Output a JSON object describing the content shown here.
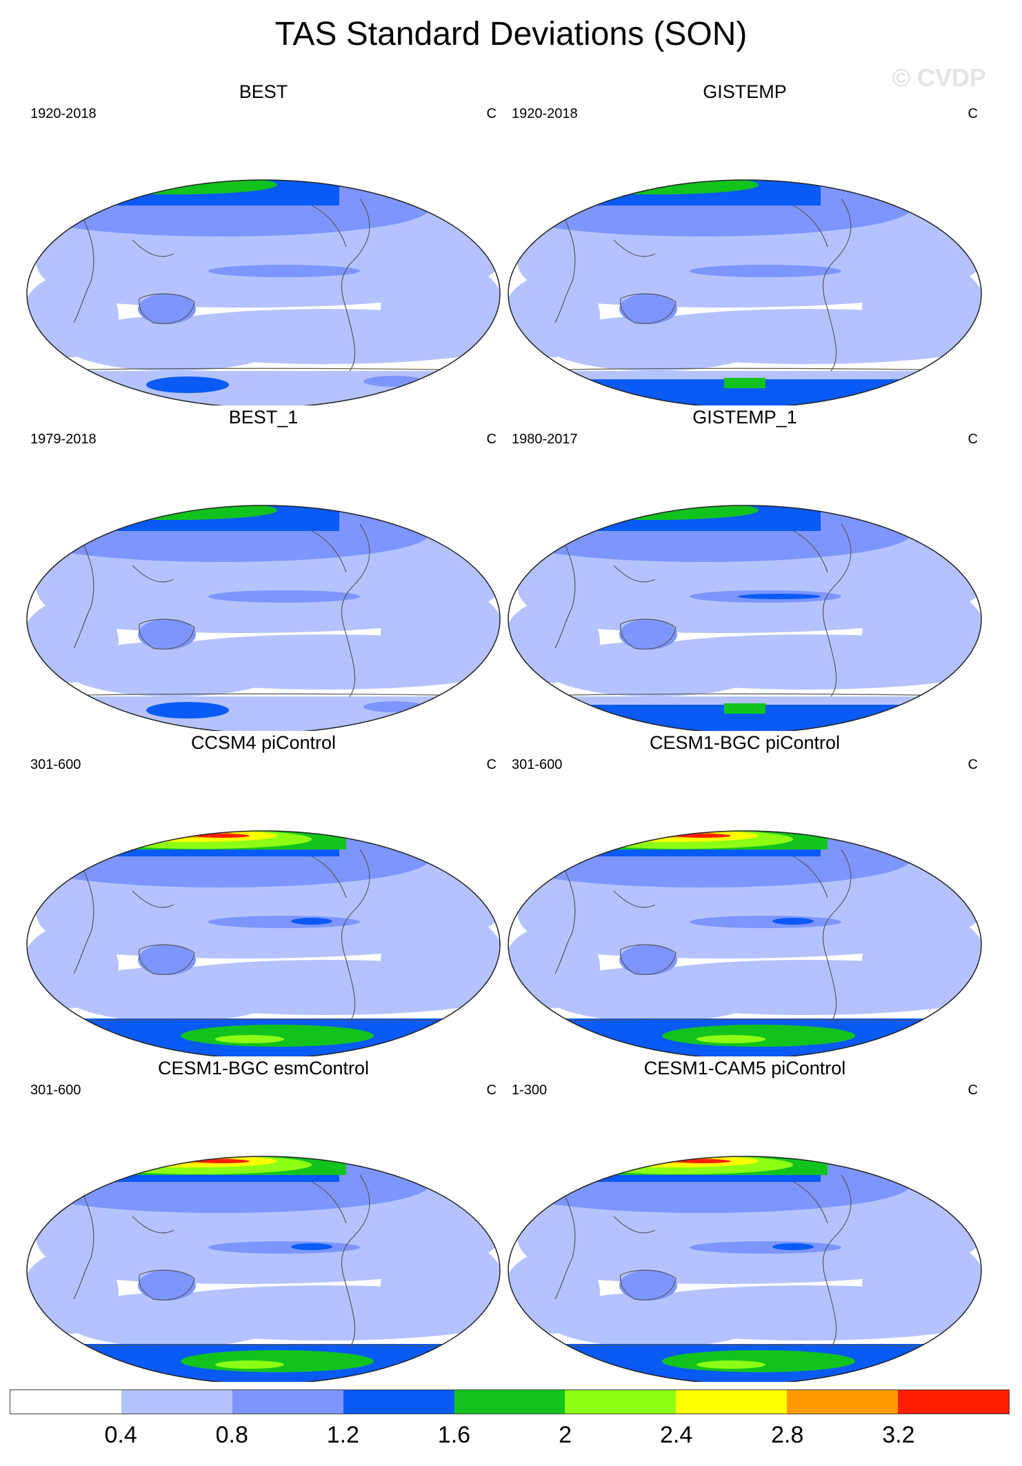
{
  "title": "TAS Standard Deviations (SON)",
  "watermark": "© CVDP",
  "panels": [
    {
      "title": "BEST",
      "period": "1920-2018",
      "units": "C",
      "source": "obs",
      "antarctic": "partial"
    },
    {
      "title": "GISTEMP",
      "period": "1920-2018",
      "units": "C",
      "source": "obs",
      "antarctic": "blue"
    },
    {
      "title": "BEST_1",
      "period": "1979-2018",
      "units": "C",
      "source": "obs",
      "antarctic": "partial"
    },
    {
      "title": "GISTEMP_1",
      "period": "1980-2017",
      "units": "C",
      "source": "obs",
      "antarctic": "blue"
    },
    {
      "title": "CCSM4 piControl",
      "period": "301-600",
      "units": "C",
      "source": "model",
      "antarctic": "model"
    },
    {
      "title": "CESM1-BGC piControl",
      "period": "301-600",
      "units": "C",
      "source": "model",
      "antarctic": "model"
    },
    {
      "title": "CESM1-BGC esmControl",
      "period": "301-600",
      "units": "C",
      "source": "model",
      "antarctic": "model"
    },
    {
      "title": "CESM1-CAM5 piControl",
      "period": "1-300",
      "units": "C",
      "source": "model",
      "antarctic": "model"
    }
  ],
  "colorbar": {
    "colors": [
      "#ffffff",
      "#b4c3ff",
      "#7d96ff",
      "#0a5af5",
      "#12c31e",
      "#8cff14",
      "#ffff00",
      "#ff9b00",
      "#ff1e00"
    ],
    "labels": [
      "0.4",
      "0.8",
      "1.2",
      "1.6",
      "2",
      "2.4",
      "2.8",
      "3.2"
    ]
  }
}
